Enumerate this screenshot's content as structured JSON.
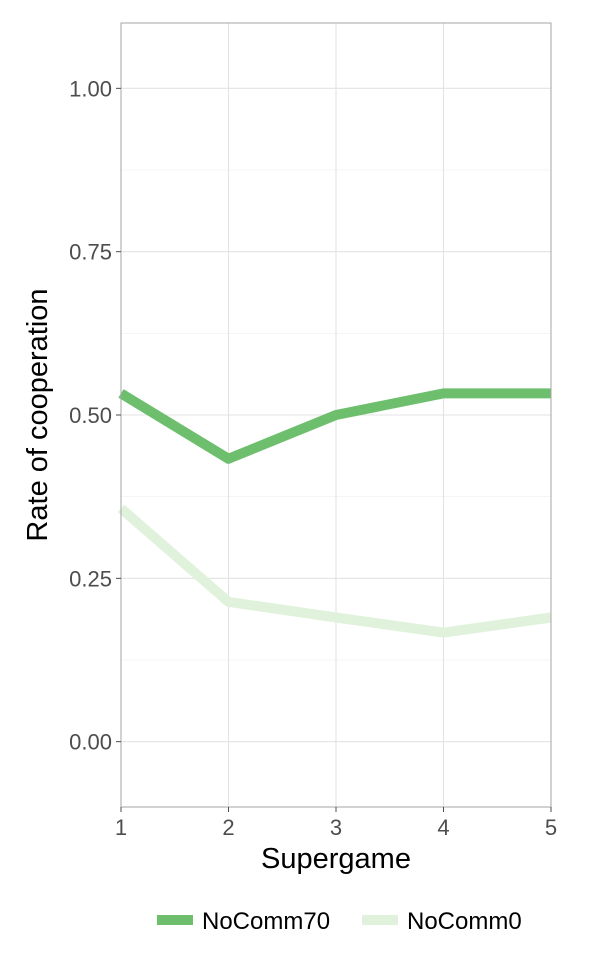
{
  "chart_data": {
    "type": "line",
    "xlabel": "Supergame",
    "ylabel": "Rate of cooperation",
    "x": [
      1,
      2,
      3,
      4,
      5
    ],
    "xlim": [
      1,
      5
    ],
    "ylim": [
      -0.1,
      1.1
    ],
    "x_ticks": [
      "1",
      "2",
      "3",
      "4",
      "5"
    ],
    "y_ticks": [
      "0.00",
      "0.25",
      "0.50",
      "0.75",
      "1.00"
    ],
    "grid": true,
    "legend_position": "bottom",
    "series": [
      {
        "name": "NoComm70",
        "values": [
          0.533,
          0.433,
          0.5,
          0.533,
          0.533
        ],
        "color": "#6dbf6d"
      },
      {
        "name": "NoComm0",
        "values": [
          0.357,
          0.214,
          0.19,
          0.167,
          0.19
        ],
        "color": "#e1f2dc"
      }
    ]
  }
}
